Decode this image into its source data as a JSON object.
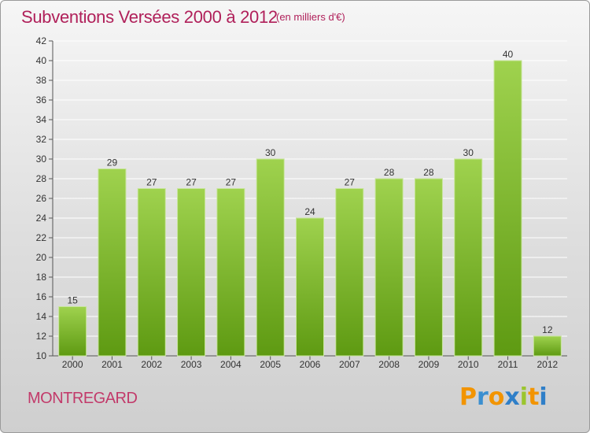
{
  "title": "Subventions Versées 2000 à 2012",
  "subtitle": "(en milliers d'€)",
  "commune": "MONTREGARD",
  "logo": {
    "letters": [
      "P",
      "r",
      "o",
      "x",
      "i",
      "t",
      "i"
    ],
    "colors": [
      "#f29400",
      "#3b8fd0",
      "#f29400",
      "#2f7fc8",
      "#9bc52e",
      "#f29400",
      "#2f7fc8"
    ]
  },
  "colors": {
    "title": "#b0205a",
    "bar_light": "#9fd24e",
    "bar_dark": "#5e9a12",
    "grid": "#ffffff"
  },
  "chart_data": {
    "type": "bar",
    "categories": [
      "2000",
      "2001",
      "2002",
      "2003",
      "2004",
      "2005",
      "2006",
      "2007",
      "2008",
      "2009",
      "2010",
      "2011",
      "2012"
    ],
    "values": [
      15,
      29,
      27,
      27,
      27,
      30,
      24,
      27,
      28,
      28,
      30,
      40,
      12
    ],
    "ylim": [
      10,
      42
    ],
    "yticks": [
      10,
      12,
      14,
      16,
      18,
      20,
      22,
      24,
      26,
      28,
      30,
      32,
      34,
      36,
      38,
      40,
      42
    ],
    "grid": true
  }
}
